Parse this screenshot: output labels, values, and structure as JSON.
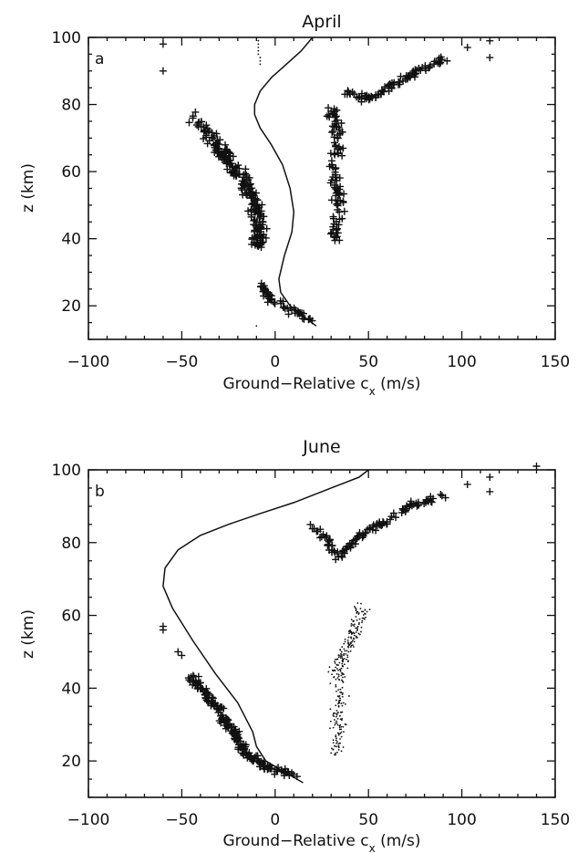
{
  "chart_data": [
    {
      "type": "scatter",
      "panel_label": "a",
      "title": "April",
      "xlabel": "Ground−Relative c",
      "xlabel_sub": "x",
      "xlabel_unit": " (m/s)",
      "ylabel": "z (km)",
      "xlim": [
        -100,
        150
      ],
      "ylim": [
        10,
        100
      ],
      "xticks": [
        -100,
        -50,
        0,
        50,
        100,
        150
      ],
      "xtick_labels": [
        "−100",
        "−50",
        "0",
        "50",
        "100",
        "150"
      ],
      "yticks": [
        20,
        40,
        60,
        80,
        100
      ],
      "ytick_labels": [
        "20",
        "40",
        "60",
        "80",
        "100"
      ],
      "grid": false,
      "series": [
        {
          "kind": "line",
          "points": [
            [
              22,
              14
            ],
            [
              15,
              17
            ],
            [
              8,
              20
            ],
            [
              3,
              24
            ],
            [
              2,
              28
            ],
            [
              5,
              35
            ],
            [
              9,
              42
            ],
            [
              10,
              48
            ],
            [
              8,
              55
            ],
            [
              4,
              62
            ],
            [
              -2,
              68
            ],
            [
              -8,
              73
            ],
            [
              -11,
              77
            ],
            [
              -11,
              80
            ],
            [
              -8,
              84
            ],
            [
              -2,
              88
            ],
            [
              6,
              92
            ],
            [
              14,
              96
            ],
            [
              20,
              100
            ]
          ]
        },
        {
          "kind": "plus-cluster",
          "points": [
            [
              -44,
              76
            ],
            [
              -35,
              71
            ],
            [
              -30,
              67
            ],
            [
              -26,
              64
            ],
            [
              -22,
              61
            ],
            [
              -18,
              58
            ],
            [
              -15,
              55
            ],
            [
              -12,
              52
            ],
            [
              -10,
              49
            ],
            [
              -9,
              46
            ],
            [
              -9,
              43
            ],
            [
              -9,
              40
            ],
            [
              -10,
              37
            ]
          ],
          "spread": 4.5,
          "count": 240
        },
        {
          "kind": "plus-cluster",
          "points": [
            [
              -7,
              26
            ],
            [
              -5,
              24
            ],
            [
              -2,
              22
            ],
            [
              4,
              20
            ],
            [
              12,
              18
            ],
            [
              20,
              15
            ]
          ],
          "spread": 2.2,
          "count": 60
        },
        {
          "kind": "plus-cluster",
          "points": [
            [
              30,
              79
            ],
            [
              34,
              74
            ],
            [
              33,
              69
            ],
            [
              32,
              64
            ],
            [
              32,
              59
            ],
            [
              33,
              54
            ],
            [
              34,
              49
            ],
            [
              33,
              44
            ],
            [
              32,
              40
            ]
          ],
          "spread": 3.5,
          "count": 110
        },
        {
          "kind": "plus-cluster",
          "points": [
            [
              38,
              84
            ],
            [
              45,
              82
            ],
            [
              52,
              82
            ],
            [
              58,
              84
            ],
            [
              64,
              86
            ],
            [
              70,
              88
            ],
            [
              76,
              90
            ],
            [
              84,
              92
            ],
            [
              90,
              94
            ]
          ],
          "spread": 2.6,
          "count": 90
        },
        {
          "kind": "plus-points",
          "points": [
            [
              -60,
              98
            ],
            [
              -60,
              90
            ],
            [
              103,
              97
            ],
            [
              115,
              99
            ],
            [
              115,
              94
            ]
          ]
        },
        {
          "kind": "dot-points",
          "points": [
            [
              -9,
              99
            ],
            [
              -9,
              98
            ],
            [
              -9,
              97
            ],
            [
              -9,
              96
            ],
            [
              -9,
              95
            ],
            [
              -8,
              94
            ],
            [
              -8,
              93
            ],
            [
              -8,
              92
            ],
            [
              -10,
              14
            ]
          ]
        }
      ]
    },
    {
      "type": "scatter",
      "panel_label": "b",
      "title": "June",
      "xlabel": "Ground−Relative c",
      "xlabel_sub": "x",
      "xlabel_unit": " (m/s)",
      "ylabel": "z (km)",
      "xlim": [
        -100,
        150
      ],
      "ylim": [
        10,
        100
      ],
      "xticks": [
        -100,
        -50,
        0,
        50,
        100,
        150
      ],
      "xtick_labels": [
        "−100",
        "−50",
        "0",
        "50",
        "100",
        "150"
      ],
      "yticks": [
        20,
        40,
        60,
        80,
        100
      ],
      "ytick_labels": [
        "20",
        "40",
        "60",
        "80",
        "100"
      ],
      "grid": false,
      "series": [
        {
          "kind": "line",
          "points": [
            [
              15,
              14
            ],
            [
              5,
              17
            ],
            [
              -5,
              20
            ],
            [
              -10,
              24
            ],
            [
              -12,
              28
            ],
            [
              -20,
              36
            ],
            [
              -32,
              44
            ],
            [
              -44,
              53
            ],
            [
              -55,
              62
            ],
            [
              -60,
              68
            ],
            [
              -59,
              73
            ],
            [
              -52,
              78
            ],
            [
              -40,
              82
            ],
            [
              -25,
              85
            ],
            [
              -8,
              88
            ],
            [
              10,
              91
            ],
            [
              30,
              95
            ],
            [
              45,
              98
            ],
            [
              50,
              100
            ]
          ]
        },
        {
          "kind": "plus-cluster",
          "points": [
            [
              -45,
              43
            ],
            [
              -40,
              40
            ],
            [
              -35,
              37
            ],
            [
              -30,
              34
            ],
            [
              -27,
              31
            ],
            [
              -23,
              28
            ],
            [
              -19,
              25
            ],
            [
              -15,
              22
            ],
            [
              -10,
              20
            ],
            [
              -4,
              18
            ],
            [
              4,
              17
            ],
            [
              12,
              16
            ]
          ],
          "spread": 2.6,
          "count": 200
        },
        {
          "kind": "plus-cluster",
          "points": [
            [
              20,
              84
            ],
            [
              25,
              82
            ],
            [
              30,
              79
            ],
            [
              34,
              76
            ],
            [
              38,
              78
            ],
            [
              42,
              80
            ],
            [
              48,
              83
            ],
            [
              54,
              85
            ],
            [
              60,
              86
            ],
            [
              66,
              88
            ],
            [
              72,
              90
            ],
            [
              80,
              91
            ],
            [
              90,
              93
            ]
          ],
          "spread": 2.3,
          "count": 120
        },
        {
          "kind": "plus-points",
          "points": [
            [
              -60,
              57
            ],
            [
              -60,
              56
            ],
            [
              -52,
              50
            ],
            [
              -50,
              49
            ],
            [
              103,
              96
            ],
            [
              115,
              98
            ],
            [
              115,
              94
            ],
            [
              140,
              101
            ]
          ]
        },
        {
          "kind": "dot-cluster",
          "points": [
            [
              33,
              22
            ],
            [
              34,
              28
            ],
            [
              34,
              34
            ],
            [
              34,
              40
            ],
            [
              33,
              46
            ],
            [
              38,
              50
            ],
            [
              42,
              54
            ],
            [
              44,
              58
            ],
            [
              46,
              62
            ]
          ],
          "spread": 4.5,
          "count": 280
        }
      ]
    }
  ]
}
